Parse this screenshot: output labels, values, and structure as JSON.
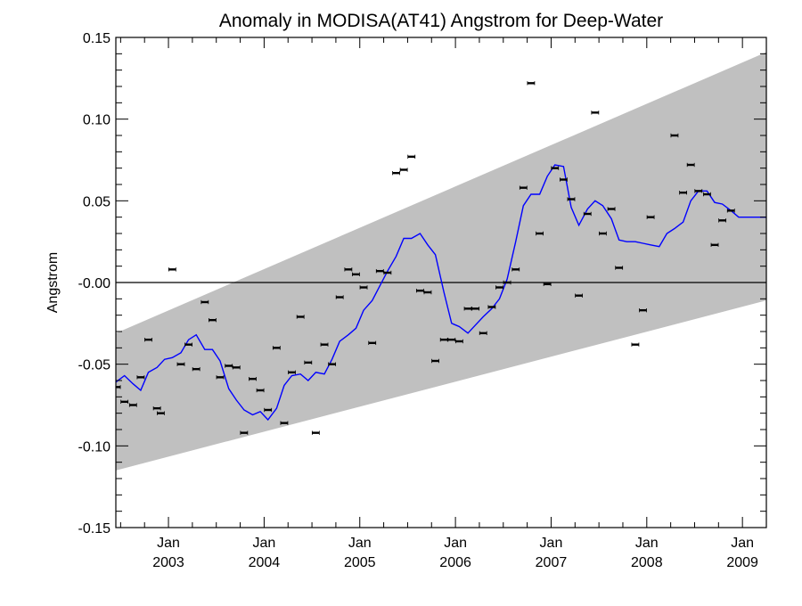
{
  "chart_data": {
    "type": "scatter",
    "title": "Anomaly in MODISA(AT41) Angstrom for Deep-Water",
    "ylabel": "Angstrom",
    "xlabel": "",
    "xlim": [
      2002.45,
      2009.25
    ],
    "ylim": [
      -0.15,
      0.15
    ],
    "yticks": [
      -0.15,
      -0.1,
      -0.05,
      0.0,
      0.05,
      0.1,
      0.15
    ],
    "ytick_labels": [
      "-0.15",
      "-0.10",
      "-0.05",
      "-0.00",
      "0.05",
      "0.10",
      "0.15"
    ],
    "xticks": [
      {
        "x": 2003.0,
        "month": "Jan",
        "year": "2003"
      },
      {
        "x": 2004.0,
        "month": "Jan",
        "year": "2004"
      },
      {
        "x": 2005.0,
        "month": "Jan",
        "year": "2005"
      },
      {
        "x": 2006.0,
        "month": "Jan",
        "year": "2006"
      },
      {
        "x": 2007.0,
        "month": "Jan",
        "year": "2007"
      },
      {
        "x": 2008.0,
        "month": "Jan",
        "year": "2008"
      },
      {
        "x": 2009.0,
        "month": "Jan",
        "year": "2009"
      }
    ],
    "zero_line": 0.0,
    "band": {
      "x": [
        2002.45,
        2009.25
      ],
      "upper": [
        -0.031,
        0.141
      ],
      "lower": [
        -0.115,
        -0.011
      ],
      "color": "#c0c0c0"
    },
    "points": [
      [
        2002.46,
        -0.064
      ],
      [
        2002.54,
        -0.073
      ],
      [
        2002.63,
        -0.075
      ],
      [
        2002.71,
        -0.058
      ],
      [
        2002.79,
        -0.035
      ],
      [
        2002.88,
        -0.077
      ],
      [
        2002.92,
        -0.08
      ],
      [
        2003.04,
        0.008
      ],
      [
        2003.13,
        -0.05
      ],
      [
        2003.21,
        -0.038
      ],
      [
        2003.29,
        -0.053
      ],
      [
        2003.38,
        -0.012
      ],
      [
        2003.46,
        -0.023
      ],
      [
        2003.54,
        -0.058
      ],
      [
        2003.63,
        -0.051
      ],
      [
        2003.71,
        -0.052
      ],
      [
        2003.79,
        -0.092
      ],
      [
        2003.88,
        -0.059
      ],
      [
        2003.96,
        -0.066
      ],
      [
        2004.04,
        -0.078
      ],
      [
        2004.13,
        -0.04
      ],
      [
        2004.21,
        -0.086
      ],
      [
        2004.29,
        -0.055
      ],
      [
        2004.38,
        -0.021
      ],
      [
        2004.46,
        -0.049
      ],
      [
        2004.54,
        -0.092
      ],
      [
        2004.63,
        -0.038
      ],
      [
        2004.71,
        -0.05
      ],
      [
        2004.79,
        -0.009
      ],
      [
        2004.88,
        0.008
      ],
      [
        2004.96,
        0.005
      ],
      [
        2005.04,
        -0.003
      ],
      [
        2005.13,
        -0.037
      ],
      [
        2005.21,
        0.007
      ],
      [
        2005.29,
        0.006
      ],
      [
        2005.38,
        0.067
      ],
      [
        2005.46,
        0.069
      ],
      [
        2005.54,
        0.077
      ],
      [
        2005.63,
        -0.005
      ],
      [
        2005.71,
        -0.006
      ],
      [
        2005.79,
        -0.048
      ],
      [
        2005.88,
        -0.035
      ],
      [
        2005.96,
        -0.035
      ],
      [
        2006.04,
        -0.036
      ],
      [
        2006.13,
        -0.016
      ],
      [
        2006.21,
        -0.016
      ],
      [
        2006.29,
        -0.031
      ],
      [
        2006.38,
        -0.015
      ],
      [
        2006.46,
        -0.003
      ],
      [
        2006.54,
        0.0
      ],
      [
        2006.63,
        0.008
      ],
      [
        2006.71,
        0.058
      ],
      [
        2006.79,
        0.122
      ],
      [
        2006.88,
        0.03
      ],
      [
        2006.96,
        -0.001
      ],
      [
        2007.04,
        0.07
      ],
      [
        2007.13,
        0.063
      ],
      [
        2007.21,
        0.051
      ],
      [
        2007.29,
        -0.008
      ],
      [
        2007.38,
        0.042
      ],
      [
        2007.46,
        0.104
      ],
      [
        2007.54,
        0.03
      ],
      [
        2007.63,
        0.045
      ],
      [
        2007.71,
        0.009
      ],
      [
        2007.88,
        -0.038
      ],
      [
        2007.96,
        -0.017
      ],
      [
        2008.04,
        0.04
      ],
      [
        2008.29,
        0.09
      ],
      [
        2008.38,
        0.055
      ],
      [
        2008.46,
        0.072
      ],
      [
        2008.54,
        0.056
      ],
      [
        2008.63,
        0.054
      ],
      [
        2008.71,
        0.023
      ],
      [
        2008.79,
        0.038
      ],
      [
        2008.88,
        0.044
      ]
    ],
    "trend_line": {
      "color": "#0000ff",
      "x": [
        2002.45,
        2002.54,
        2002.63,
        2002.71,
        2002.79,
        2002.88,
        2002.96,
        2003.04,
        2003.13,
        2003.21,
        2003.29,
        2003.38,
        2003.46,
        2003.54,
        2003.63,
        2003.71,
        2003.79,
        2003.88,
        2003.96,
        2004.04,
        2004.13,
        2004.21,
        2004.29,
        2004.38,
        2004.46,
        2004.54,
        2004.63,
        2004.71,
        2004.79,
        2004.88,
        2004.96,
        2005.04,
        2005.13,
        2005.21,
        2005.29,
        2005.38,
        2005.46,
        2005.54,
        2005.63,
        2005.71,
        2005.79,
        2005.88,
        2005.96,
        2006.04,
        2006.13,
        2006.21,
        2006.29,
        2006.38,
        2006.46,
        2006.54,
        2006.63,
        2006.71,
        2006.79,
        2006.88,
        2006.96,
        2007.04,
        2007.13,
        2007.21,
        2007.29,
        2007.38,
        2007.46,
        2007.54,
        2007.63,
        2007.71,
        2007.79,
        2007.88,
        2007.96,
        2008.04,
        2008.13,
        2008.21,
        2008.29,
        2008.38,
        2008.46,
        2008.54,
        2008.63,
        2008.71,
        2008.79,
        2008.88,
        2008.96,
        2009.04,
        2009.13,
        2009.25
      ],
      "y": [
        -0.061,
        -0.057,
        -0.062,
        -0.066,
        -0.055,
        -0.052,
        -0.047,
        -0.046,
        -0.043,
        -0.035,
        -0.032,
        -0.041,
        -0.041,
        -0.048,
        -0.065,
        -0.072,
        -0.078,
        -0.081,
        -0.079,
        -0.084,
        -0.077,
        -0.063,
        -0.057,
        -0.056,
        -0.06,
        -0.055,
        -0.056,
        -0.047,
        -0.036,
        -0.032,
        -0.028,
        -0.017,
        -0.011,
        -0.002,
        0.007,
        0.016,
        0.027,
        0.027,
        0.03,
        0.023,
        0.017,
        -0.006,
        -0.025,
        -0.027,
        -0.031,
        -0.026,
        -0.021,
        -0.016,
        -0.01,
        0.002,
        0.025,
        0.047,
        0.054,
        0.054,
        0.065,
        0.072,
        0.071,
        0.046,
        0.035,
        0.045,
        0.05,
        0.047,
        0.039,
        0.026,
        0.025,
        0.025,
        0.024,
        0.023,
        0.022,
        0.03,
        0.033,
        0.037,
        0.05,
        0.056,
        0.056,
        0.049,
        0.048,
        0.044,
        0.04,
        0.04,
        0.04,
        0.04
      ]
    }
  }
}
